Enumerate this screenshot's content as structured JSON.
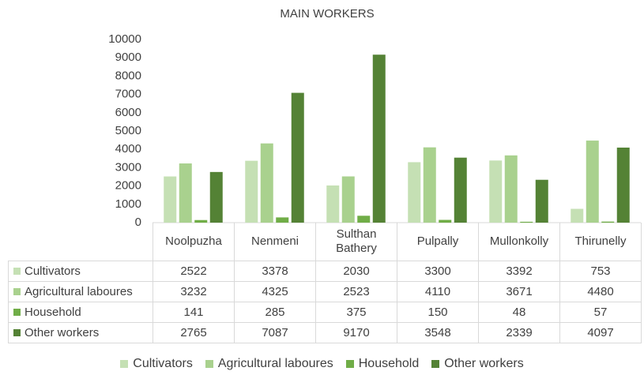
{
  "chart_data": {
    "type": "bar",
    "title": "MAIN WORKERS",
    "categories": [
      "Noolpuzha",
      "Nenmeni",
      "Sulthan Bathery",
      "Pulpally",
      "Mullonkolly",
      "Thirunelly"
    ],
    "series": [
      {
        "name": "Cultivators",
        "color": "#c5e0b4",
        "values": [
          2522,
          3378,
          2030,
          3300,
          3392,
          753
        ]
      },
      {
        "name": "Agricultural laboures",
        "color": "#a9d18e",
        "values": [
          3232,
          4325,
          2523,
          4110,
          3671,
          4480
        ]
      },
      {
        "name": "Household",
        "color": "#70ad47",
        "values": [
          141,
          285,
          375,
          150,
          48,
          57
        ]
      },
      {
        "name": "Other workers",
        "color": "#548235",
        "values": [
          2765,
          7087,
          9170,
          3548,
          2339,
          4097
        ]
      }
    ],
    "ylim": [
      0,
      10000
    ],
    "yticks": [
      0,
      1000,
      2000,
      3000,
      4000,
      5000,
      6000,
      7000,
      8000,
      9000,
      10000
    ],
    "grid": false,
    "legend": "bottom",
    "data_table": true
  }
}
